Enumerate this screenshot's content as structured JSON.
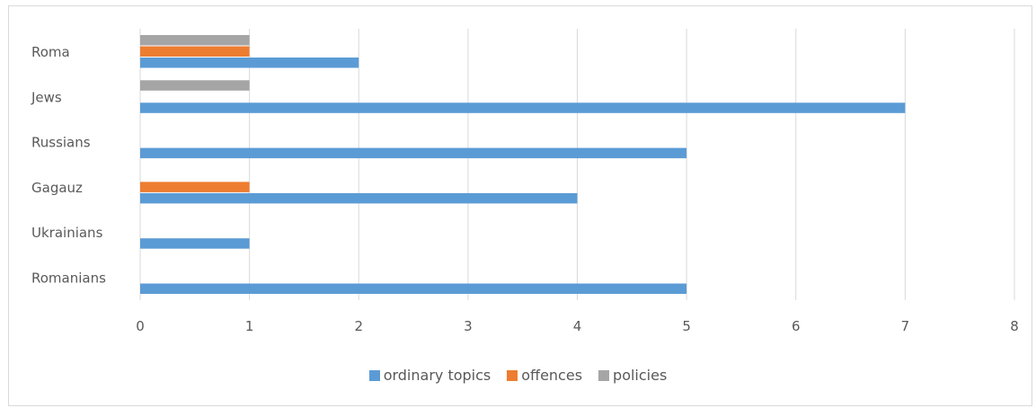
{
  "chart_data": {
    "type": "bar",
    "orientation": "horizontal",
    "categories": [
      "Roma",
      "Jews",
      "Russians",
      "Gagauz",
      "Ukrainians",
      "Romanians"
    ],
    "series": [
      {
        "name": "ordinary topics",
        "color": "#5B9BD5",
        "values": [
          2,
          7,
          5,
          4,
          1,
          5
        ]
      },
      {
        "name": "offences",
        "color": "#ED7D31",
        "values": [
          1,
          0,
          0,
          1,
          0,
          0
        ]
      },
      {
        "name": "policies",
        "color": "#A5A5A5",
        "values": [
          1,
          1,
          0,
          0,
          0,
          0
        ]
      }
    ],
    "xlim": [
      0,
      8
    ],
    "xticks": [
      0,
      1,
      2,
      3,
      4,
      5,
      6,
      7,
      8
    ],
    "grid": true,
    "legend": "bottom-center",
    "title": "",
    "xlabel": "",
    "ylabel": ""
  }
}
